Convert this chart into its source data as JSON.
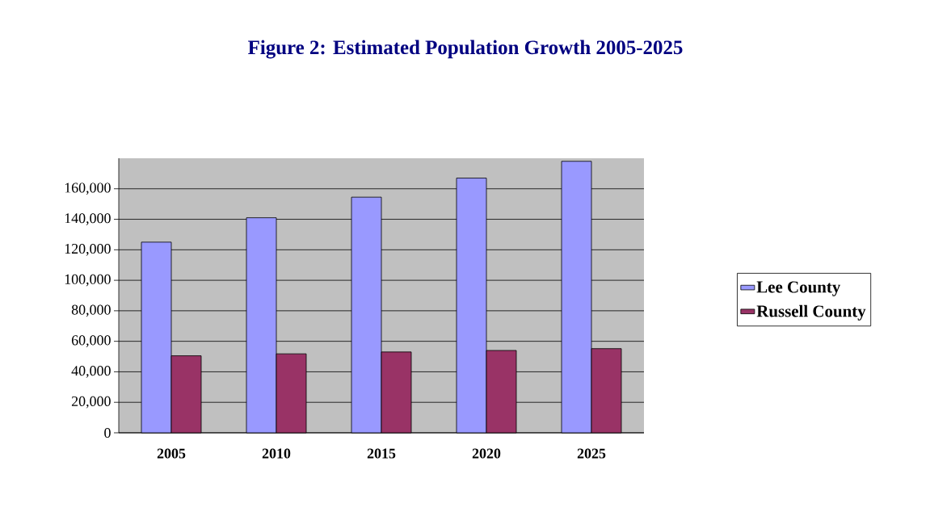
{
  "chart_data": {
    "type": "bar",
    "title": "Figure 2: Estimated Population Growth 2005-2025",
    "categories": [
      "2005",
      "2010",
      "2015",
      "2020",
      "2025"
    ],
    "series": [
      {
        "name": "Lee County",
        "color": "#9999ff",
        "values": [
          125000,
          141000,
          154500,
          167000,
          178000
        ]
      },
      {
        "name": "Russell County",
        "color": "#993366",
        "values": [
          50500,
          51800,
          53000,
          54000,
          55200
        ]
      }
    ],
    "ylim": [
      0,
      180000
    ],
    "yticks": [
      0,
      {
        "value": 20000,
        "label": "20,000"
      },
      {
        "value": 40000,
        "label": "40,000"
      },
      {
        "value": 60000,
        "label": "60,000"
      },
      {
        "value": 80000,
        "label": "80,000"
      },
      {
        "value": 100000,
        "label": "100,000"
      },
      {
        "value": 120000,
        "label": "120,000"
      },
      {
        "value": 140000,
        "label": "140,000"
      },
      {
        "value": 160000,
        "label": "160,000"
      }
    ],
    "grid": "y",
    "legend": "right"
  }
}
